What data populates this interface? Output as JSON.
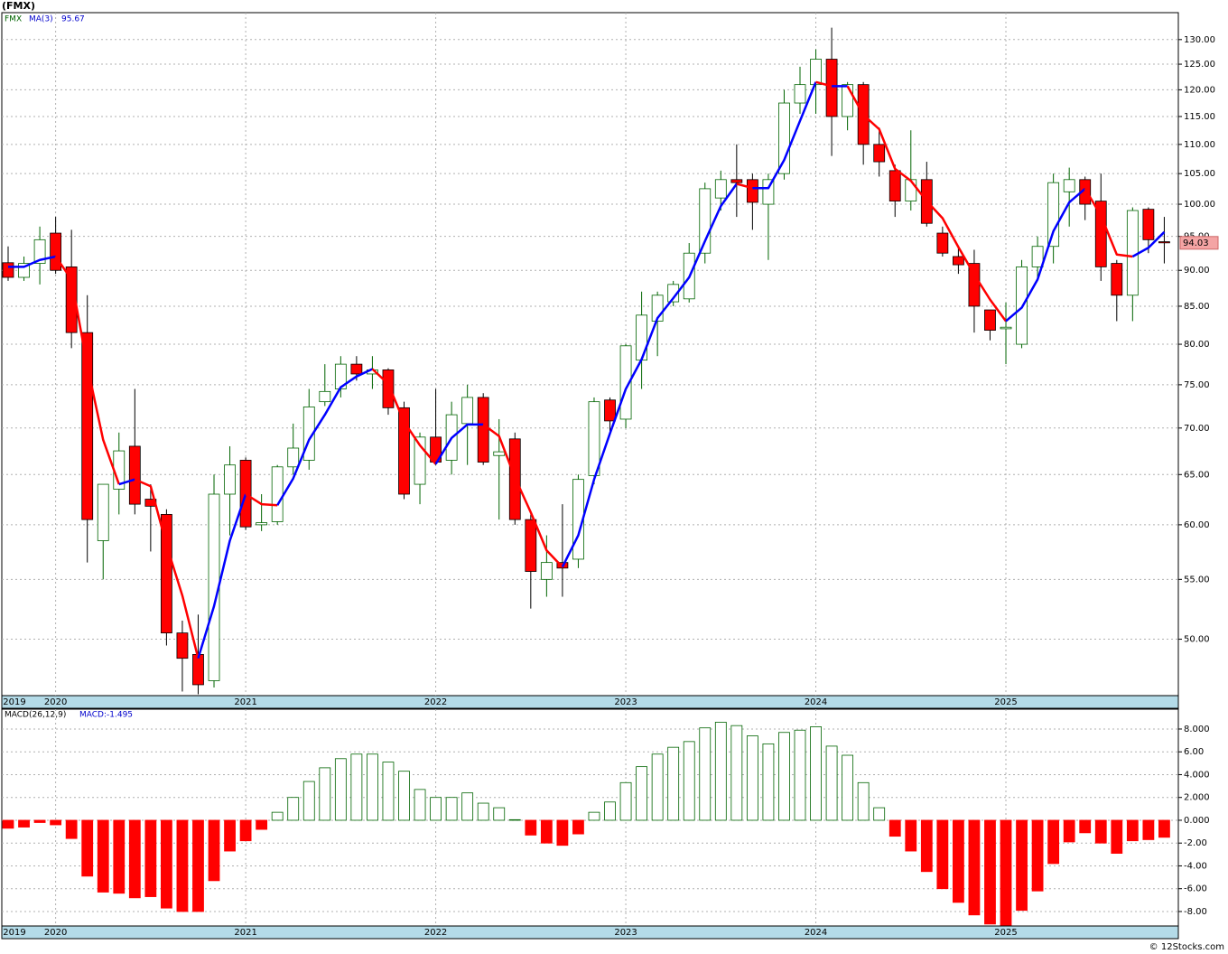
{
  "chart_data": [
    {
      "type": "candlestick",
      "title": "(FMX)",
      "categories": [
        "2019",
        null,
        null,
        "2020",
        null,
        null,
        null,
        null,
        null,
        null,
        null,
        null,
        null,
        null,
        null,
        "2021",
        null,
        null,
        null,
        null,
        null,
        null,
        null,
        null,
        null,
        null,
        null,
        "2022",
        null,
        null,
        null,
        null,
        null,
        null,
        null,
        null,
        null,
        null,
        null,
        "2023",
        null,
        null,
        null,
        null,
        null,
        null,
        null,
        null,
        null,
        null,
        null,
        "2024",
        null,
        null,
        null,
        null,
        null,
        null,
        null,
        null,
        null,
        null,
        null,
        "2025",
        null,
        null,
        null,
        null,
        null,
        null,
        null,
        null,
        null,
        null
      ],
      "series": [
        {
          "name": "FMX",
          "up_color": "#006400",
          "down_color": "#ff0000",
          "open": [
            91.1,
            89,
            91,
            95.5,
            90.5,
            81.5,
            58.5,
            63.5,
            68,
            62.5,
            61,
            50.5,
            48.8,
            46.8,
            63,
            66.5,
            60,
            60.3,
            65.8,
            66.5,
            73,
            74.5,
            77.5,
            76.3,
            76.8,
            72.3,
            64,
            69,
            66.5,
            70.5,
            73.5,
            67,
            68.8,
            60.5,
            55,
            56.5,
            56.8,
            64.9,
            73.2,
            71,
            78,
            83,
            85.6,
            86,
            92.5,
            101,
            104,
            104,
            100,
            105,
            117.5,
            121,
            126,
            115,
            121,
            110,
            105.5,
            100.5,
            104,
            95.5,
            92,
            91,
            84.5,
            82,
            80,
            90.5,
            93.5,
            102,
            104,
            100.5,
            91,
            86.5,
            99.2,
            94.2
          ],
          "high": [
            93.5,
            92,
            96.5,
            98,
            96,
            86.5,
            64,
            69.5,
            74.5,
            64,
            61.5,
            51.5,
            52,
            65,
            68,
            66.8,
            63,
            66,
            70.5,
            74.5,
            77.5,
            78.5,
            78.5,
            78.5,
            77,
            73,
            69.5,
            74.5,
            73,
            75,
            74,
            71,
            69.5,
            61,
            59,
            62,
            65,
            73.5,
            73.5,
            80,
            87,
            87,
            88.5,
            94,
            103.5,
            105.5,
            110,
            105,
            105,
            120,
            124.5,
            128,
            132.5,
            121.5,
            121.5,
            113,
            106.5,
            112.5,
            107,
            96.5,
            93.5,
            93,
            84.5,
            85.5,
            91.5,
            95,
            105,
            106,
            104.5,
            105,
            91.5,
            99.5,
            99.5,
            98
          ],
          "low": [
            88.5,
            88.5,
            88,
            89.5,
            79.5,
            56.5,
            55,
            61,
            61,
            57.5,
            49.5,
            46,
            45.8,
            46.3,
            59,
            59.5,
            59.4,
            60,
            65,
            65.5,
            72.5,
            73.5,
            75.5,
            74.5,
            71.5,
            62.5,
            62,
            66,
            65,
            66,
            66,
            60.5,
            60,
            52.5,
            53.5,
            53.5,
            56,
            64,
            69.5,
            70,
            74.5,
            78.5,
            85,
            85.5,
            91,
            99,
            98,
            96,
            91.5,
            104,
            115.5,
            115.5,
            108,
            112.5,
            106.5,
            104.5,
            98,
            99,
            96.5,
            92,
            89.5,
            81.5,
            80.5,
            77.5,
            79.5,
            89,
            91,
            96.5,
            97.5,
            88.5,
            83,
            83,
            92.5,
            91
          ],
          "close": [
            89,
            91,
            94.5,
            90,
            81.5,
            60.5,
            64,
            67.5,
            62,
            61.8,
            50.5,
            48.5,
            46.5,
            63,
            66,
            59.8,
            60.2,
            65.8,
            67.8,
            72.4,
            74.2,
            77.5,
            76.3,
            76.8,
            72.3,
            63,
            69,
            66.3,
            71.5,
            73.5,
            66.3,
            67.4,
            60.5,
            55.7,
            56.5,
            56,
            64.5,
            73,
            70.8,
            79.8,
            83.8,
            86.5,
            88,
            92.5,
            102.5,
            104,
            103.5,
            100.3,
            104,
            117.5,
            121,
            126,
            115,
            121,
            110,
            107,
            100.5,
            104,
            97,
            92.5,
            90.8,
            85,
            81.8,
            82.2,
            90.5,
            93.5,
            103.5,
            104,
            100,
            90.5,
            86.5,
            99,
            94.5,
            94.03
          ]
        }
      ],
      "ma": {
        "name": "MA(3)",
        "up_color": "#0000ff",
        "down_color": "#ff0000",
        "values": [
          90.5,
          90.5,
          91.5,
          92,
          88.7,
          77.3,
          68.7,
          64,
          64.5,
          63.8,
          58.1,
          53.6,
          48.5,
          52.7,
          58.5,
          63,
          62,
          61.9,
          64.6,
          68.7,
          71.5,
          74.7,
          76,
          76.9,
          75.1,
          70.7,
          68.1,
          66.1,
          68.9,
          70.4,
          70.4,
          69.1,
          64.7,
          61.2,
          57.6,
          56.1,
          59,
          64.5,
          69.4,
          74.5,
          78.1,
          83.4,
          86.1,
          89,
          94.3,
          99.7,
          103.3,
          102.6,
          102.6,
          107.3,
          114.2,
          121.5,
          120.7,
          120.7,
          115.3,
          112.7,
          105.8,
          103.8,
          100.5,
          97.8,
          93.4,
          89.4,
          85.9,
          83,
          84.8,
          88.7,
          95.8,
          100.3,
          102.5,
          98.2,
          92.3,
          92,
          93.3,
          95.67
        ]
      },
      "log_scale": true,
      "grid": true,
      "ylim": [
        45.7,
        135.7
      ],
      "yticks": [
        {
          "value": 50,
          "label": "50.00"
        },
        {
          "value": 55,
          "label": "55.00"
        },
        {
          "value": 60,
          "label": "60.00"
        },
        {
          "value": 65,
          "label": "65.00"
        },
        {
          "value": 70,
          "label": "70.00"
        },
        {
          "value": 75,
          "label": "75.00"
        },
        {
          "value": 80,
          "label": "80.00"
        },
        {
          "value": 85,
          "label": "85.00"
        },
        {
          "value": 90,
          "label": "90.00"
        },
        {
          "value": 95,
          "label": "95.00"
        },
        {
          "value": 100,
          "label": "100.00"
        },
        {
          "value": 105,
          "label": "105.00"
        },
        {
          "value": 110,
          "label": "110.00"
        },
        {
          "value": 115,
          "label": "115.00"
        },
        {
          "value": 120,
          "label": "120.00"
        },
        {
          "value": 125,
          "label": "125.00"
        },
        {
          "value": 130,
          "label": "130.00"
        }
      ]
    },
    {
      "type": "bar",
      "title": "MACD(26,12,9)",
      "value_text": "MACD:-1.495",
      "values": [
        -0.7,
        -0.6,
        -0.2,
        -0.4,
        -1.6,
        -4.9,
        -6.3,
        -6.4,
        -6.8,
        -6.7,
        -7.7,
        -8,
        -8,
        -5.3,
        -2.7,
        -1.8,
        -0.8,
        0.7,
        2,
        3.4,
        4.6,
        5.4,
        5.8,
        5.8,
        5.1,
        4.3,
        2.7,
        2,
        2,
        2.4,
        1.5,
        1.1,
        0.05,
        -1.3,
        -2,
        -2.2,
        -1.2,
        0.7,
        1.6,
        3.3,
        4.7,
        5.8,
        6.4,
        6.9,
        8.1,
        8.6,
        8.3,
        7.4,
        6.7,
        7.7,
        7.9,
        8.2,
        6.5,
        5.7,
        3.3,
        1.1,
        -1.4,
        -2.7,
        -4.5,
        -6,
        -7.2,
        -8.3,
        -9.1,
        -9.2,
        -7.9,
        -6.2,
        -3.8,
        -1.9,
        -1.1,
        -2,
        -2.9,
        -1.8,
        -1.7,
        -1.495
      ],
      "up_color": "#006400",
      "down_color": "#ff0000",
      "grid": true,
      "ylim": [
        -9.27,
        9.74
      ],
      "yticks": [
        {
          "value": -8,
          "label": "-8.00"
        },
        {
          "value": -6,
          "label": "-6.00"
        },
        {
          "value": -4,
          "label": "-4.00"
        },
        {
          "value": -2,
          "label": "-2.00"
        },
        {
          "value": 0,
          "label": "0.000"
        },
        {
          "value": 2,
          "label": "2.000"
        },
        {
          "value": 4,
          "label": "4.000"
        },
        {
          "value": 6,
          "label": "6.00"
        },
        {
          "value": 8,
          "label": "8.000"
        }
      ]
    }
  ],
  "footer": "© 12Stocks.com"
}
